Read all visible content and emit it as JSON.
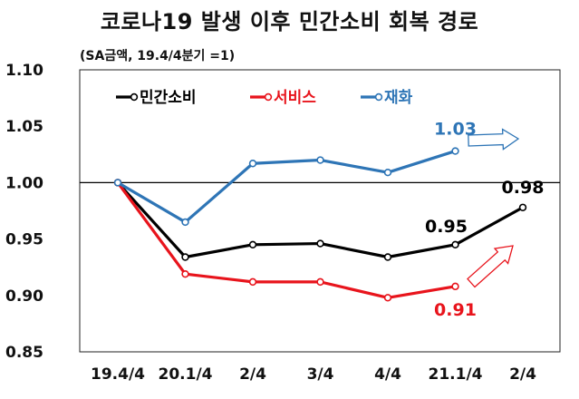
{
  "title": "코로나19 발생 이후 민간소비 회복 경로",
  "chart_data": {
    "type": "line",
    "subtitle": "(SA금액, 19.4/4분기 =1)",
    "categories": [
      "19.4/4",
      "20.1/4",
      "2/4",
      "3/4",
      "4/4",
      "21.1/4",
      "2/4"
    ],
    "ylim": [
      0.85,
      1.1
    ],
    "yticks": [
      "1.10",
      "1.05",
      "1.00",
      "0.95",
      "0.90",
      "0.85"
    ],
    "yticks_values": [
      1.1,
      1.05,
      1.0,
      0.95,
      0.9,
      0.85
    ],
    "reference_line": 1.0,
    "legend_position": "top-left",
    "series": [
      {
        "name": "민간소비",
        "color": "#000000",
        "values": [
          1.0,
          0.934,
          0.945,
          0.946,
          0.934,
          0.945,
          0.978
        ]
      },
      {
        "name": "서비스",
        "color": "#e8141c",
        "values": [
          1.0,
          0.919,
          0.912,
          0.912,
          0.898,
          0.908,
          null
        ]
      },
      {
        "name": "재화",
        "color": "#2e75b6",
        "values": [
          1.0,
          0.965,
          1.017,
          1.02,
          1.009,
          1.028,
          null
        ]
      }
    ],
    "annotations": [
      {
        "text": "1.03",
        "series": 2,
        "index": 5,
        "color": "#2e75b6"
      },
      {
        "text": "0.95",
        "series": 0,
        "index": 5,
        "color": "#000000"
      },
      {
        "text": "0.98",
        "series": 0,
        "index": 6,
        "color": "#000000"
      },
      {
        "text": "0.91",
        "series": 1,
        "index": 5,
        "color": "#e8141c"
      }
    ],
    "trend_arrows": [
      {
        "name": "goods-trend",
        "color": "#2e75b6",
        "direction": "right"
      },
      {
        "name": "services-trend",
        "color": "#e8141c",
        "direction": "up-right"
      }
    ]
  }
}
